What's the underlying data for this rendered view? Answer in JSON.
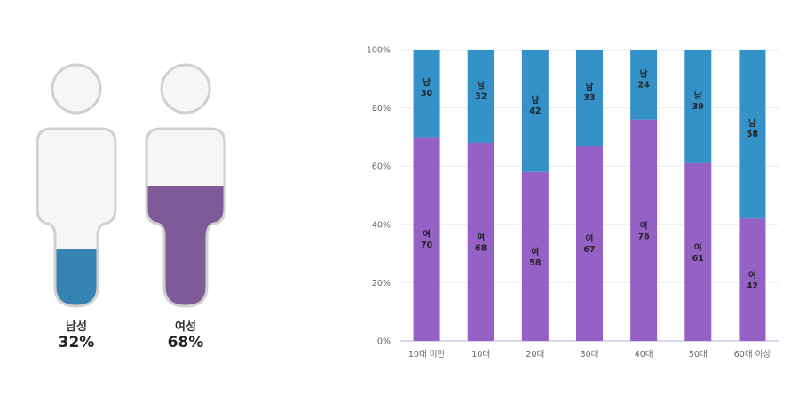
{
  "gender": {
    "male": {
      "label": "남성",
      "percent_text": "32%",
      "fill_fraction": 0.32,
      "color": "#3682b2"
    },
    "female": {
      "label": "여성",
      "percent_text": "68%",
      "fill_fraction": 0.68,
      "color": "#7e5a99"
    }
  },
  "chart_data": {
    "type": "bar",
    "stacked": true,
    "categories": [
      "10대 미만",
      "10대",
      "20대",
      "30대",
      "40대",
      "50대",
      "60대 이상"
    ],
    "series": [
      {
        "name": "여",
        "values": [
          70,
          68,
          58,
          67,
          76,
          61,
          42
        ],
        "color": "#9561c4"
      },
      {
        "name": "남",
        "values": [
          30,
          32,
          42,
          33,
          24,
          39,
          58
        ],
        "color": "#3492c8"
      }
    ],
    "ylim": [
      0,
      100
    ],
    "yticks": [
      0,
      20,
      40,
      60,
      80,
      100
    ],
    "ytick_labels": [
      "0%",
      "20%",
      "40%",
      "60%",
      "80%",
      "100%"
    ],
    "grid": true,
    "legend": "none",
    "title": "",
    "xlabel": "",
    "ylabel": ""
  }
}
